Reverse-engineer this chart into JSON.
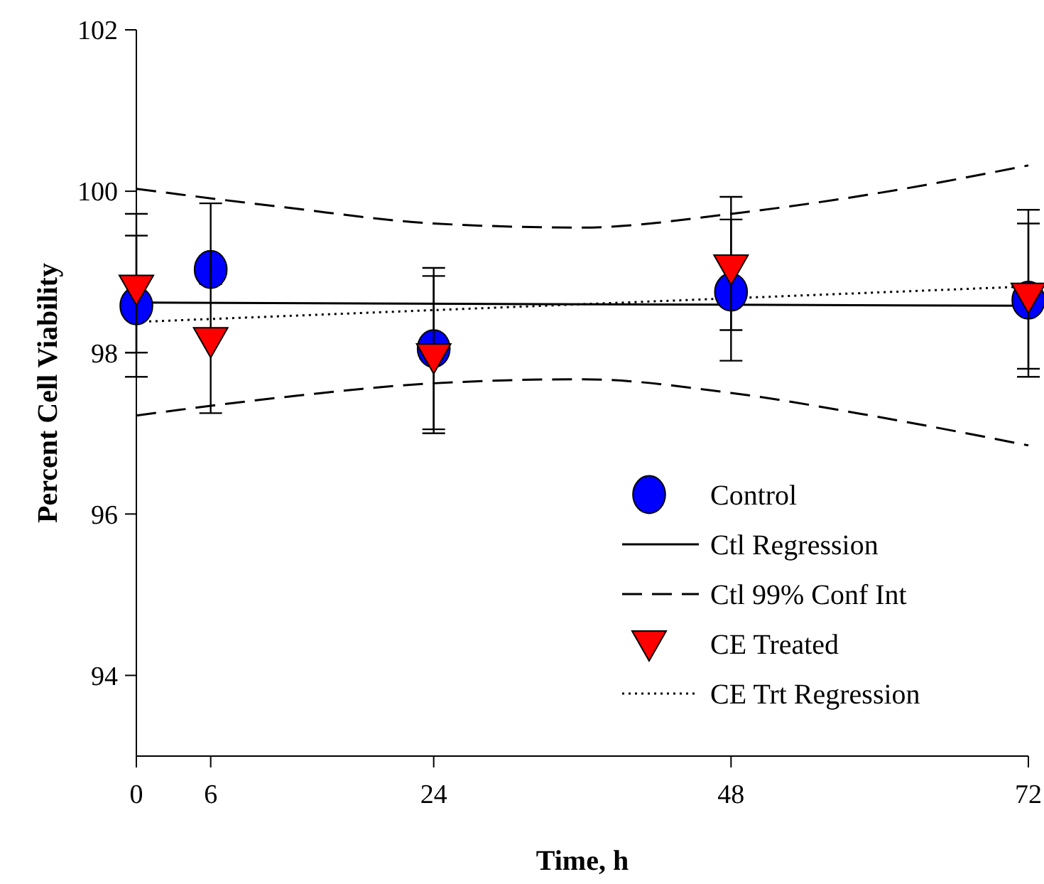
{
  "chart_data": {
    "type": "scatter",
    "xlabel": "Time, h",
    "ylabel": "Percent Cell Viability",
    "xlim": [
      0,
      72
    ],
    "xticks": [
      0,
      6,
      24,
      48,
      72
    ],
    "ylim": [
      93,
      102
    ],
    "yticks": [
      94,
      96,
      98,
      100,
      102
    ],
    "grid": false,
    "legend": "bottom right",
    "series": [
      {
        "name": "Ctl Regression",
        "type": "line",
        "color": "#000000",
        "line_style": "solid",
        "marker": "none",
        "x": [
          0,
          72
        ],
        "values": [
          98.62,
          98.58
        ]
      },
      {
        "name": "Ctl 99% Conf Int",
        "type": "line",
        "color": "#000000",
        "line_style": "dashed",
        "marker": "none",
        "x": [
          0,
          12,
          24,
          36,
          48,
          60,
          72
        ],
        "values": [
          100.03,
          99.8,
          99.6,
          99.55,
          99.72,
          99.98,
          100.32
        ]
      },
      {
        "type": "line",
        "color": "#000000",
        "line_style": "dashed",
        "marker": "none",
        "x": [
          0,
          12,
          24,
          36,
          48,
          60,
          72
        ],
        "values": [
          97.22,
          97.45,
          97.62,
          97.67,
          97.5,
          97.2,
          96.85
        ]
      },
      {
        "name": "CE Trt Regression",
        "type": "line",
        "color": "#000000",
        "line_style": "dotted",
        "marker": "none",
        "x": [
          0,
          72
        ],
        "values": [
          98.38,
          98.82
        ]
      },
      {
        "name": "Control",
        "color": "#0000ff",
        "marker": "circle",
        "x": [
          0,
          6,
          24,
          48,
          72
        ],
        "values": [
          98.58,
          99.03,
          98.05,
          98.75,
          98.65
        ],
        "errors": [
          [
            98.0,
            99.45
          ],
          [
            98.85,
            99.2
          ],
          [
            97.05,
            99.05
          ],
          [
            97.9,
            99.65
          ],
          [
            97.7,
            99.6
          ]
        ]
      },
      {
        "name": "CE Treated",
        "color": "#ff0000",
        "marker": "triangle-down",
        "x": [
          0,
          6,
          24,
          48,
          72
        ],
        "values": [
          98.8,
          98.15,
          97.95,
          99.05,
          98.7
        ],
        "errors": [
          [
            97.7,
            99.72
          ],
          [
            97.25,
            99.85
          ],
          [
            97.0,
            98.95
          ],
          [
            98.28,
            99.93
          ],
          [
            97.8,
            99.77
          ]
        ]
      }
    ]
  }
}
